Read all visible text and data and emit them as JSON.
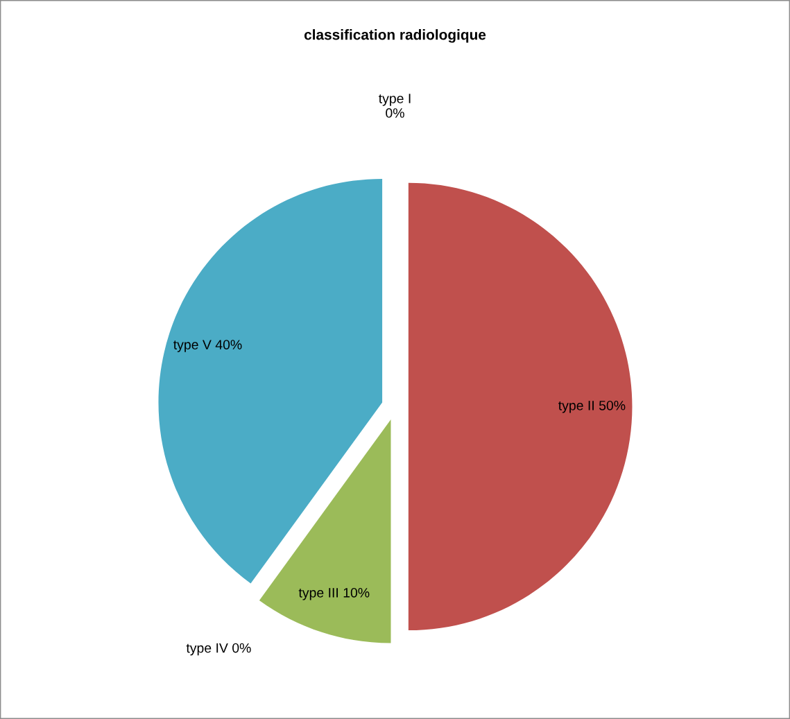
{
  "chart_data": {
    "type": "pie",
    "title": "classification radiologique",
    "categories": [
      "type I",
      "type II",
      "type III",
      "type IV",
      "type V"
    ],
    "values": [
      0,
      50,
      10,
      0,
      40
    ],
    "value_labels": [
      "0%",
      "50%",
      "10%",
      "0%",
      "40%"
    ],
    "colors": [
      "#4f81bd",
      "#c0504d",
      "#9bbb59",
      "#8064a2",
      "#4bacc6"
    ],
    "legend": false
  }
}
